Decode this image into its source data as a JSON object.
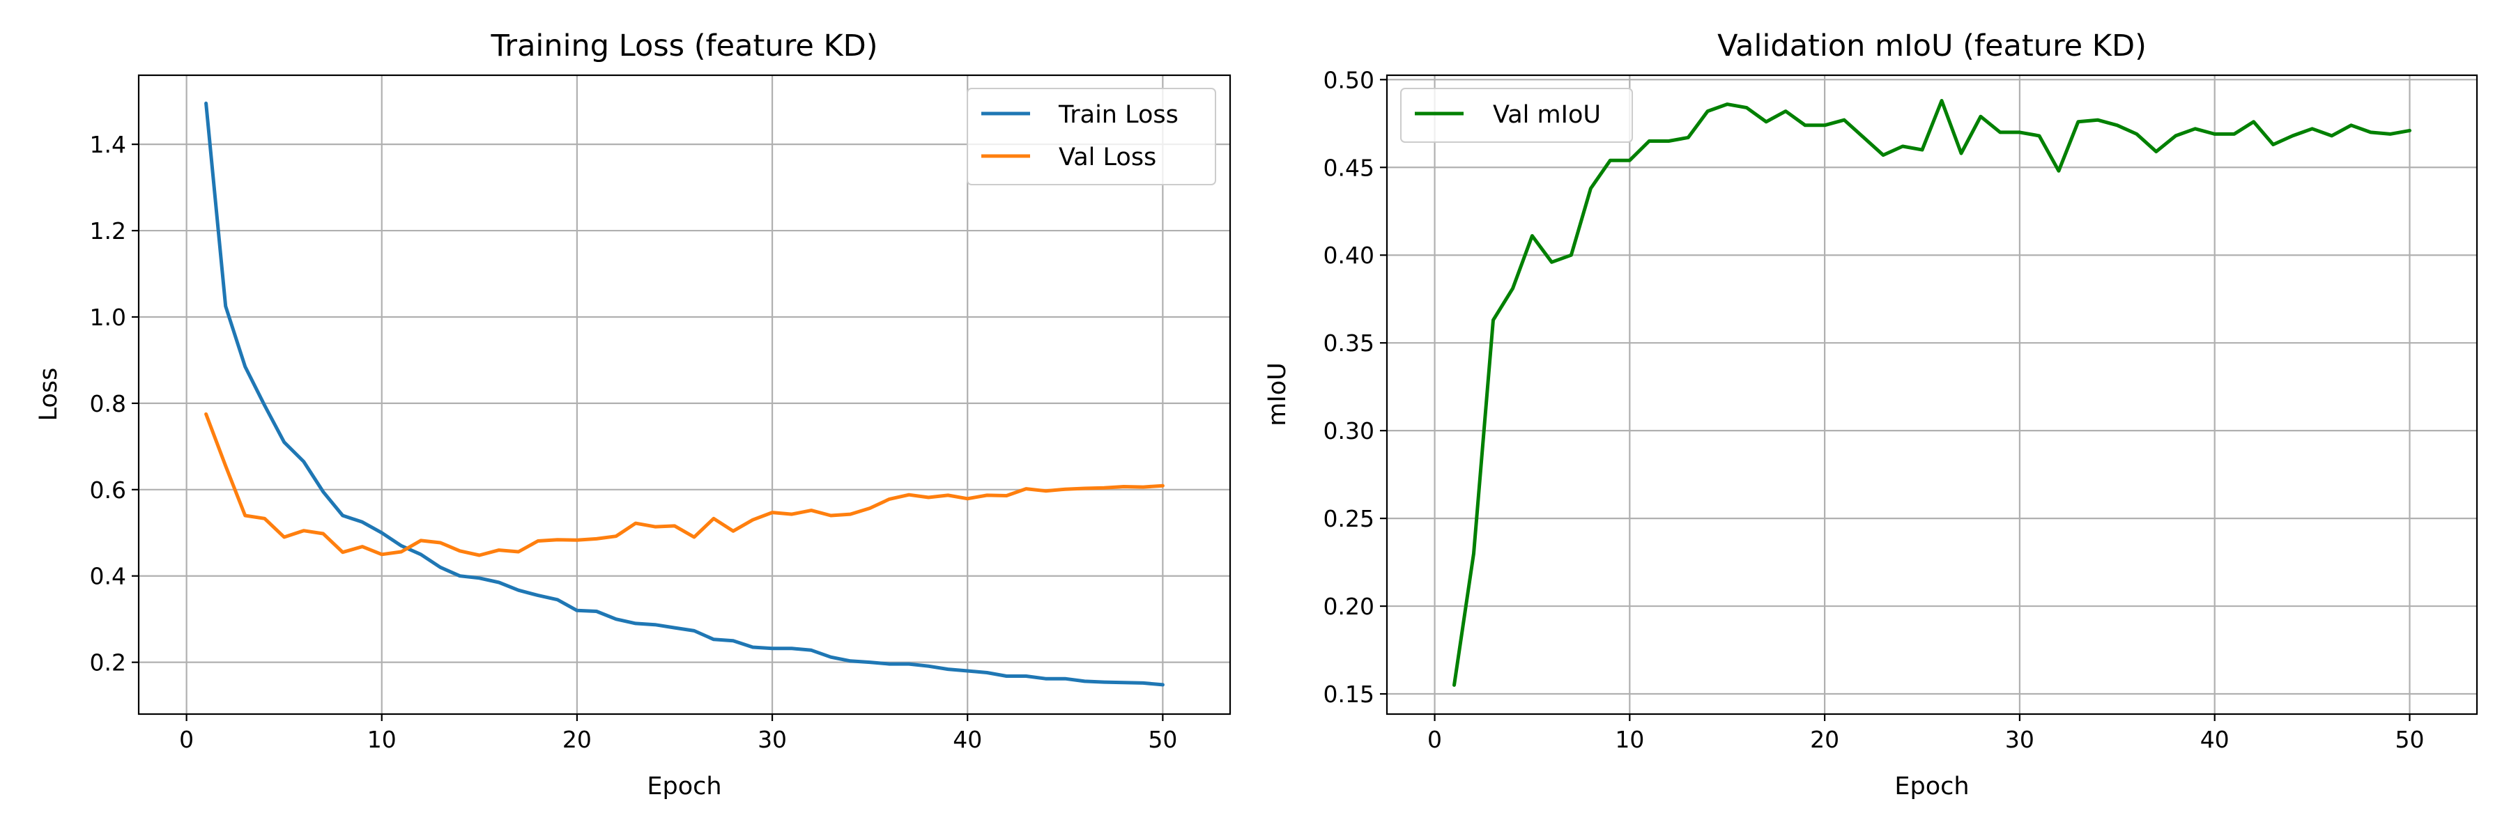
{
  "chart_data": [
    {
      "type": "line",
      "title": "Training Loss (feature KD)",
      "xlabel": "Epoch",
      "ylabel": "Loss",
      "xlim": [
        -2.45,
        53.45
      ],
      "ylim": [
        0.08,
        1.56
      ],
      "xticks": [
        0,
        10,
        20,
        30,
        40,
        50
      ],
      "yticks": [
        0.2,
        0.4,
        0.6,
        0.8,
        1.0,
        1.2,
        1.4
      ],
      "ytick_decimals": 1,
      "grid": true,
      "legend_position": "top-right",
      "x": [
        1,
        2,
        3,
        4,
        5,
        6,
        7,
        8,
        9,
        10,
        11,
        12,
        13,
        14,
        15,
        16,
        17,
        18,
        19,
        20,
        21,
        22,
        23,
        24,
        25,
        26,
        27,
        28,
        29,
        30,
        31,
        32,
        33,
        34,
        35,
        36,
        37,
        38,
        39,
        40,
        41,
        42,
        43,
        44,
        45,
        46,
        47,
        48,
        49,
        50
      ],
      "series": [
        {
          "name": "Train Loss",
          "color": "#1f77b4",
          "values": [
            1.495,
            1.025,
            0.885,
            0.795,
            0.71,
            0.665,
            0.595,
            0.54,
            0.525,
            0.5,
            0.47,
            0.45,
            0.42,
            0.4,
            0.395,
            0.385,
            0.367,
            0.355,
            0.345,
            0.32,
            0.318,
            0.3,
            0.29,
            0.287,
            0.28,
            0.273,
            0.253,
            0.25,
            0.235,
            0.232,
            0.232,
            0.228,
            0.212,
            0.203,
            0.2,
            0.196,
            0.196,
            0.191,
            0.184,
            0.18,
            0.176,
            0.168,
            0.168,
            0.162,
            0.162,
            0.156,
            0.154,
            0.153,
            0.152,
            0.148
          ]
        },
        {
          "name": "Val Loss",
          "color": "#ff7f0e",
          "values": [
            0.775,
            0.655,
            0.54,
            0.533,
            0.49,
            0.505,
            0.498,
            0.455,
            0.468,
            0.45,
            0.456,
            0.482,
            0.477,
            0.458,
            0.448,
            0.46,
            0.456,
            0.481,
            0.484,
            0.483,
            0.486,
            0.492,
            0.522,
            0.514,
            0.516,
            0.49,
            0.533,
            0.504,
            0.53,
            0.547,
            0.543,
            0.552,
            0.54,
            0.543,
            0.557,
            0.578,
            0.588,
            0.582,
            0.587,
            0.579,
            0.587,
            0.586,
            0.602,
            0.597,
            0.601,
            0.603,
            0.604,
            0.607,
            0.606,
            0.609
          ]
        }
      ]
    },
    {
      "type": "line",
      "title": "Validation mIoU (feature KD)",
      "xlabel": "Epoch",
      "ylabel": "mIoU",
      "xlim": [
        -2.45,
        53.45
      ],
      "ylim": [
        0.1385,
        0.5025
      ],
      "xticks": [
        0,
        10,
        20,
        30,
        40,
        50
      ],
      "yticks": [
        0.15,
        0.2,
        0.25,
        0.3,
        0.35,
        0.4,
        0.45,
        0.5
      ],
      "ytick_decimals": 2,
      "grid": true,
      "legend_position": "top-left",
      "x": [
        1,
        2,
        3,
        4,
        5,
        6,
        7,
        8,
        9,
        10,
        11,
        12,
        13,
        14,
        15,
        16,
        17,
        18,
        19,
        20,
        21,
        22,
        23,
        24,
        25,
        26,
        27,
        28,
        29,
        30,
        31,
        32,
        33,
        34,
        35,
        36,
        37,
        38,
        39,
        40,
        41,
        42,
        43,
        44,
        45,
        46,
        47,
        48,
        49,
        50
      ],
      "series": [
        {
          "name": "Val mIoU",
          "color": "#008000",
          "values": [
            0.155,
            0.23,
            0.363,
            0.381,
            0.411,
            0.396,
            0.4,
            0.438,
            0.454,
            0.454,
            0.465,
            0.465,
            0.467,
            0.482,
            0.486,
            0.484,
            0.476,
            0.482,
            0.474,
            0.474,
            0.477,
            0.467,
            0.457,
            0.462,
            0.46,
            0.488,
            0.458,
            0.479,
            0.47,
            0.47,
            0.468,
            0.448,
            0.476,
            0.477,
            0.474,
            0.469,
            0.459,
            0.468,
            0.472,
            0.469,
            0.469,
            0.476,
            0.463,
            0.468,
            0.472,
            0.468,
            0.474,
            0.47,
            0.469,
            0.471
          ]
        }
      ]
    }
  ]
}
